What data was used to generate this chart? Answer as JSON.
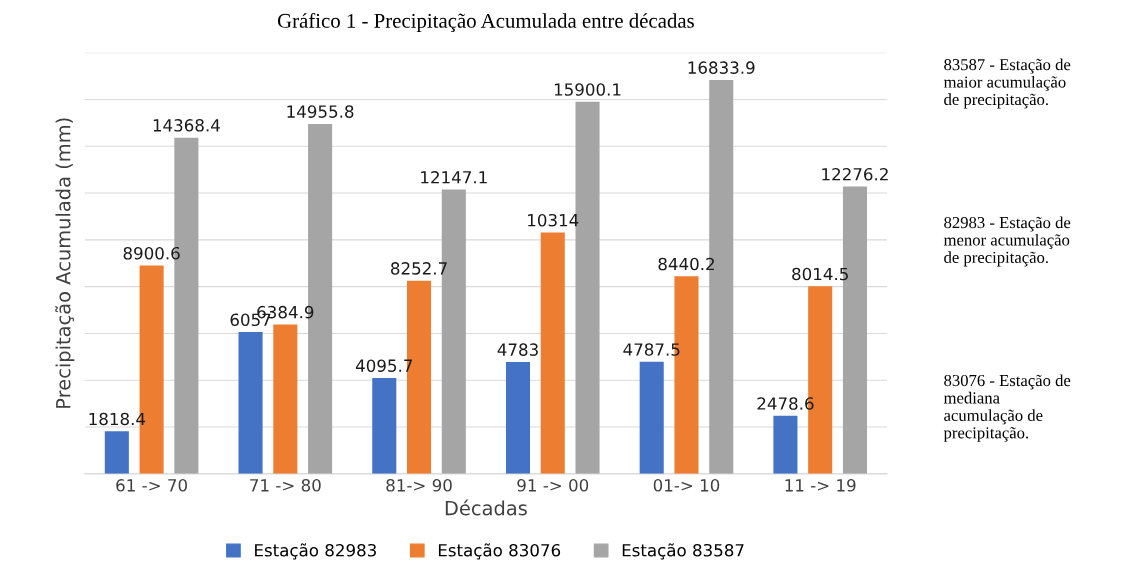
{
  "chart_data": {
    "type": "bar",
    "title": "Gráfico 1 - Precipitação Acumulada entre décadas",
    "xlabel": "Décadas",
    "ylabel": "Precipitação Acumulada (mm)",
    "categories": [
      "61 -> 70",
      "71 -> 80",
      "81-> 90",
      "91 -> 00",
      "01-> 10",
      "11 -> 19"
    ],
    "series": [
      {
        "name": "Estação 82983",
        "color": "#4472c4",
        "values": [
          1818.4,
          6057,
          4095.7,
          4783,
          4787.5,
          2478.6
        ]
      },
      {
        "name": "Estação 83076",
        "color": "#ed7d31",
        "values": [
          8900.6,
          6384.9,
          8252.7,
          10314,
          8440.2,
          8014.5
        ]
      },
      {
        "name": "Estação 83587",
        "color": "#a5a5a5",
        "values": [
          14368.4,
          14955.8,
          12147.1,
          15900.1,
          16833.9,
          12276.2
        ]
      }
    ],
    "ylim": [
      0,
      18000
    ],
    "yticks": [
      {
        "value": 0,
        "label": null
      },
      {
        "value": 2000,
        "label": null
      },
      {
        "value": 4000,
        "label": null
      },
      {
        "value": 6000,
        "label": null
      },
      {
        "value": 8000,
        "label": null
      },
      {
        "value": 10000,
        "label": null
      },
      {
        "value": 12000,
        "label": null
      },
      {
        "value": 14000,
        "label": null
      },
      {
        "value": 16000,
        "label": null
      },
      {
        "value": 18000,
        "label": null
      }
    ],
    "grid": "y",
    "legend": "bottom",
    "data_labels": true,
    "annotations": [
      "83587 - Estação de maior acumulação de precipitação.",
      "82983 - Estação de menor acumulação de precipitação.",
      "83076 - Estação de mediana acumulação de precipitação."
    ]
  }
}
